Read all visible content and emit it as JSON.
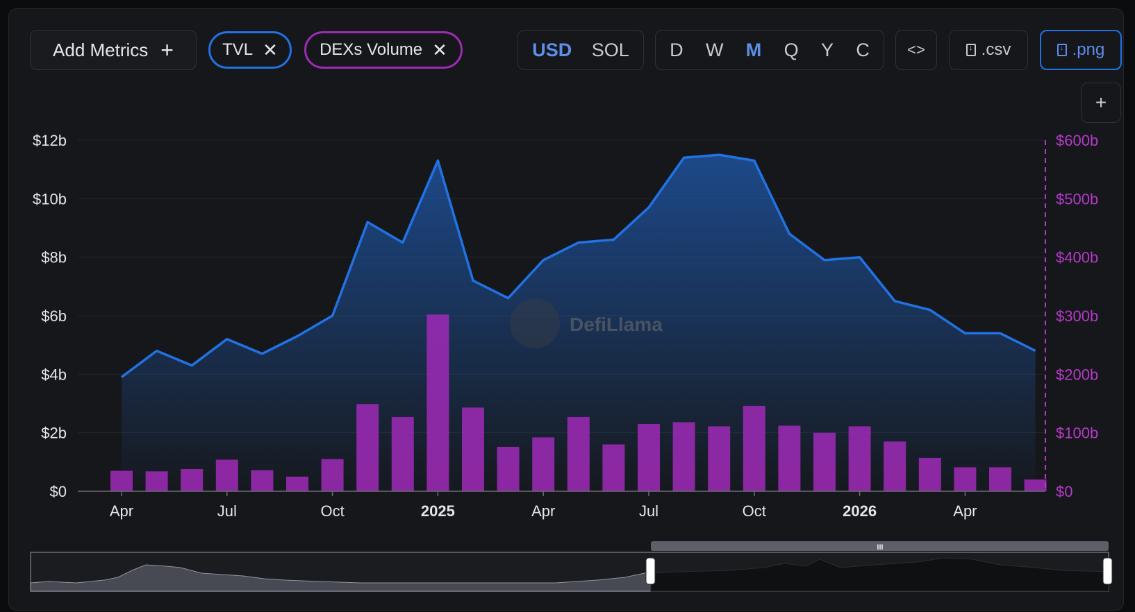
{
  "toolbar": {
    "add_metrics_label": "Add Metrics",
    "add_metrics_icon": "plus-icon",
    "metrics": [
      {
        "label": "TVL",
        "color": "#2172e5"
      },
      {
        "label": "DEXs Volume",
        "color": "#a02ab8"
      }
    ],
    "remove_icon": "close-icon",
    "currencies": [
      "USD",
      "SOL"
    ],
    "currency_selected": "USD",
    "periods": [
      "D",
      "W",
      "M",
      "Q",
      "Y",
      "C"
    ],
    "period_selected": "M",
    "embed_icon": "code-icon",
    "csv_label": ".csv",
    "png_label": ".png",
    "add_chart_icon": "plus-icon"
  },
  "watermark": "DefiLlama",
  "colors": {
    "tvl": "#2172e5",
    "volume": "#a02ab8",
    "active": "#5d8fea",
    "axis_right": "#b43ac9"
  },
  "chart_data": {
    "type": "line",
    "x_ticks": [
      "Apr",
      "Jul",
      "Oct",
      "2025",
      "Apr",
      "Jul",
      "Oct",
      "2026",
      "Apr"
    ],
    "x_ticks_bold": [
      false,
      false,
      false,
      true,
      false,
      false,
      false,
      true,
      false
    ],
    "left_axis": {
      "ticks": [
        "$0",
        "$2b",
        "$4b",
        "$6b",
        "$8b",
        "$10b",
        "$12b"
      ],
      "ylim": [
        0,
        12
      ]
    },
    "right_axis": {
      "ticks": [
        "$0",
        "$100b",
        "$200b",
        "$300b",
        "$400b",
        "$500b",
        "$600b"
      ],
      "ylim": [
        0,
        600
      ]
    },
    "months": [
      "2024-04",
      "2024-05",
      "2024-06",
      "2024-07",
      "2024-08",
      "2024-09",
      "2024-10",
      "2024-11",
      "2024-12",
      "2025-01",
      "2025-02",
      "2025-03",
      "2025-04",
      "2025-05",
      "2025-06",
      "2025-07",
      "2025-08",
      "2025-09",
      "2025-10",
      "2025-11",
      "2025-12",
      "2026-01",
      "2026-02",
      "2026-03",
      "2026-04",
      "2026-05",
      "2026-06"
    ],
    "series": [
      {
        "name": "TVL",
        "type": "area",
        "axis": "left",
        "unit": "$b",
        "values": [
          3.9,
          4.8,
          4.3,
          5.2,
          4.7,
          5.3,
          6.0,
          9.2,
          8.5,
          11.3,
          7.2,
          6.6,
          7.9,
          8.5,
          8.6,
          9.7,
          11.4,
          11.5,
          11.3,
          8.8,
          7.9,
          8.0,
          6.5,
          6.2,
          5.4,
          5.4,
          4.8
        ]
      },
      {
        "name": "DEXs Volume",
        "type": "bar",
        "axis": "right",
        "unit": "$b",
        "values": [
          35,
          34,
          38,
          54,
          36,
          25,
          55,
          149,
          127,
          302,
          143,
          76,
          92,
          127,
          80,
          115,
          118,
          111,
          146,
          112,
          100,
          111,
          85,
          57,
          41,
          41,
          20
        ]
      }
    ]
  }
}
